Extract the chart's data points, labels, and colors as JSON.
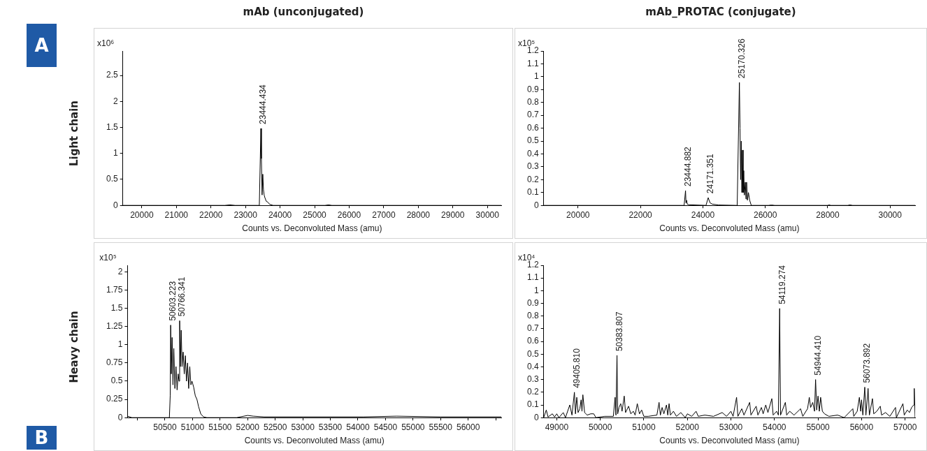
{
  "chart_data": [
    {
      "type": "line",
      "title": "mAb (unconjugated)",
      "ylabel": "Light chain",
      "xlabel": "Counts vs. Deconvoluted Mass (amu)",
      "color": "#000000",
      "x": [
        19450,
        20500,
        22400,
        22550,
        22700,
        23400,
        23444.434,
        23460,
        23480,
        23500,
        23520,
        23540,
        23560,
        23600,
        23650,
        23700,
        23800,
        25300,
        25400,
        25500,
        30400
      ],
      "values": [
        0,
        0,
        0,
        0.01,
        0,
        0,
        1.48,
        0.9,
        0.2,
        0.6,
        0.3,
        0.2,
        0.15,
        0.08,
        0.06,
        0.02,
        0,
        0,
        0.01,
        0,
        0
      ],
      "xlim": [
        19450,
        30400
      ],
      "xticks": [
        20000,
        21000,
        22000,
        23000,
        24000,
        25000,
        26000,
        27000,
        28000,
        29000,
        30000
      ],
      "ylim": [
        0,
        2.97
      ],
      "yticks": [
        0,
        0.5,
        1,
        1.5,
        2,
        2.5
      ],
      "annotations": [
        "x10⁶",
        "A",
        {
          "text": "23444.434",
          "x": 23444.434,
          "y": 1.48
        }
      ]
    },
    {
      "type": "line",
      "title": "mAb_PROTAC (conjugate)",
      "xlabel": "Counts vs. Deconvoluted Mass (amu)",
      "color": "#000000",
      "x": [
        18900,
        22500,
        23400,
        23444.882,
        23460,
        23480,
        23500,
        23550,
        24100,
        24171.351,
        24200,
        24230,
        24300,
        24500,
        25100,
        25170.326,
        25190,
        25210,
        25230,
        25250,
        25270,
        25290,
        25310,
        25330,
        25360,
        25380,
        25400,
        25430,
        25460,
        25500,
        25550,
        26100,
        26200,
        26300,
        28000,
        28050,
        28100,
        28650,
        28700,
        28800,
        30800
      ],
      "values": [
        0,
        0,
        0,
        0.115,
        0.02,
        0.04,
        0.01,
        0.005,
        0,
        0.06,
        0.04,
        0.02,
        0.01,
        0.003,
        0,
        0.955,
        0.6,
        0.2,
        0.5,
        0.1,
        0.43,
        0.1,
        0.27,
        0.08,
        0.18,
        0.05,
        0.18,
        0.04,
        0.1,
        0.04,
        0,
        0,
        0.003,
        0,
        0,
        0.004,
        0,
        0,
        0.004,
        0,
        0
      ],
      "xlim": [
        18900,
        30800
      ],
      "xticks": [
        20000,
        22000,
        24000,
        26000,
        28000,
        30000
      ],
      "ylim": [
        0,
        1.2
      ],
      "yticks": [
        0,
        0.1,
        0.2,
        0.3,
        0.4,
        0.5,
        0.6,
        0.7,
        0.8,
        0.9,
        1,
        1.1,
        1.2
      ],
      "annotations": [
        "x10⁵",
        {
          "text": "23444.882",
          "x": 23444.882,
          "y": 0.115
        },
        {
          "text": "24171.351",
          "x": 24171.351,
          "y": 0.06
        },
        {
          "text": "25170.326",
          "x": 25170.326,
          "y": 0.955
        }
      ]
    },
    {
      "type": "line",
      "ylabel": "Heavy chain",
      "xlabel": "Counts vs. Deconvoluted Mass (amu)",
      "color": "#000000",
      "x": [
        49820,
        49900,
        50580,
        50595,
        50603.223,
        50615,
        50630,
        50645,
        50660,
        50680,
        50700,
        50720,
        50740,
        50755,
        50766.341,
        50780,
        50795,
        50810,
        50830,
        50850,
        50870,
        50890,
        50910,
        50930,
        50950,
        50970,
        50990,
        51020,
        51050,
        51080,
        51110,
        51150,
        51200,
        51260,
        51800,
        52000,
        52100,
        52300,
        53000,
        54100,
        54700,
        55500,
        56600
      ],
      "values": [
        0.02,
        0,
        0,
        0.3,
        1.27,
        0.6,
        1.1,
        0.45,
        0.95,
        0.4,
        0.7,
        0.38,
        0.6,
        0.5,
        1.33,
        0.7,
        1.2,
        0.7,
        0.9,
        0.6,
        0.85,
        0.5,
        0.75,
        0.4,
        0.7,
        0.45,
        0.5,
        0.42,
        0.3,
        0.25,
        0.15,
        0.05,
        0.01,
        0,
        0,
        0.03,
        0.02,
        0.01,
        0.01,
        0.01,
        0.02,
        0.01,
        0.01
      ],
      "xlim": [
        49820,
        56600
      ],
      "xticks": [
        {
          "value": 50000,
          "label": null
        },
        50500,
        51000,
        51500,
        52000,
        52500,
        53000,
        53500,
        54000,
        54500,
        55000,
        55500,
        56000,
        {
          "value": 56500,
          "label": null
        }
      ],
      "ylim": [
        0,
        2.09
      ],
      "yticks": [
        0,
        0.25,
        0.5,
        0.75,
        1,
        1.25,
        1.5,
        1.75,
        2
      ],
      "annotations": [
        "x10⁵",
        "B",
        {
          "text": "50603.223",
          "x": 50603.223,
          "y": 1.27
        },
        {
          "text": "50766.341",
          "x": 50766.341,
          "y": 1.33
        }
      ]
    },
    {
      "type": "line",
      "xlabel": "Counts vs. Deconvoluted Mass (amu)",
      "color": "#000000",
      "x": [
        48700,
        48760,
        48800,
        48900,
        48950,
        49000,
        49050,
        49150,
        49200,
        49300,
        49350,
        49405.81,
        49430,
        49460,
        49490,
        49530,
        49560,
        49580,
        49600,
        49640,
        49700,
        49780,
        49850,
        49900,
        50100,
        50300,
        50340,
        50360,
        50383.807,
        50400,
        50430,
        50470,
        50500,
        50550,
        50580,
        50650,
        50700,
        50760,
        50800,
        50850,
        50900,
        50950,
        51000,
        51100,
        51300,
        51350,
        51380,
        51420,
        51460,
        51520,
        51550,
        51580,
        51610,
        51680,
        51750,
        51850,
        51950,
        52000,
        52100,
        52200,
        52250,
        52400,
        52600,
        52800,
        52900,
        53000,
        53050,
        53130,
        53160,
        53250,
        53300,
        53430,
        53460,
        53580,
        53620,
        53700,
        53740,
        53800,
        53850,
        53940,
        53970,
        54050,
        54090,
        54119.274,
        54140,
        54250,
        54280,
        54350,
        54450,
        54600,
        54650,
        54760,
        54800,
        54830,
        54880,
        54920,
        54944.41,
        54970,
        55000,
        55030,
        55060,
        55100,
        55150,
        55250,
        55450,
        55600,
        55800,
        55820,
        55900,
        55950,
        55980,
        56000,
        56030,
        56073.892,
        56100,
        56150,
        56180,
        56250,
        56280,
        56350,
        56430,
        56460,
        56550,
        56650,
        56780,
        56800,
        56950,
        56980,
        57050,
        57100,
        57150,
        57200,
        57210,
        57230
      ],
      "values": [
        0,
        0.06,
        0.005,
        0.03,
        0.005,
        0.03,
        0,
        0.04,
        0,
        0.1,
        0.02,
        0.2,
        0.03,
        0.16,
        0.04,
        0.07,
        0.14,
        0.05,
        0.18,
        0.04,
        0.02,
        0.03,
        0.03,
        0,
        0.01,
        0.01,
        0.16,
        0.02,
        0.49,
        0.03,
        0.08,
        0.11,
        0.05,
        0.17,
        0.04,
        0.09,
        0.03,
        0.05,
        0.02,
        0.11,
        0.03,
        0.06,
        0.01,
        0.01,
        0.02,
        0.12,
        0.02,
        0.08,
        0.03,
        0.1,
        0.02,
        0.11,
        0.02,
        0.05,
        0.01,
        0.04,
        0,
        0.03,
        0.01,
        0.05,
        0.01,
        0.02,
        0.01,
        0.04,
        0.01,
        0.05,
        0.01,
        0.16,
        0.01,
        0.07,
        0.02,
        0.12,
        0.02,
        0.09,
        0.02,
        0.08,
        0.03,
        0.1,
        0.04,
        0.15,
        0.02,
        0.05,
        0.02,
        0.86,
        0.02,
        0.12,
        0.02,
        0.05,
        0.02,
        0.07,
        0.01,
        0.07,
        0.16,
        0.08,
        0.12,
        0.05,
        0.3,
        0.06,
        0.17,
        0.05,
        0.16,
        0.05,
        0.03,
        0.01,
        0.02,
        0,
        0.07,
        0.01,
        0.05,
        0.16,
        0.05,
        0.14,
        0.02,
        0.24,
        0.02,
        0.23,
        0.02,
        0.15,
        0.03,
        0.05,
        0.09,
        0.02,
        0.04,
        0.01,
        0.08,
        0,
        0.11,
        0.02,
        0.06,
        0.04,
        0.08,
        0.1,
        0.23,
        0
      ],
      "xlim": [
        48700,
        57230
      ],
      "xticks": [
        49000,
        50000,
        51000,
        52000,
        53000,
        54000,
        55000,
        56000,
        57000
      ],
      "ylim": [
        0,
        1.2
      ],
      "yticks": [
        0,
        0.1,
        0.2,
        0.3,
        0.4,
        0.5,
        0.6,
        0.7,
        0.8,
        0.9,
        1,
        1.1,
        1.2
      ],
      "annotations": [
        "x10⁴",
        {
          "text": "49405.810",
          "x": 49405.81,
          "y": 0.2
        },
        {
          "text": "50383.807",
          "x": 50383.807,
          "y": 0.49
        },
        {
          "text": "54119.274",
          "x": 54119.274,
          "y": 0.86
        },
        {
          "text": "54944.410",
          "x": 54944.41,
          "y": 0.3
        },
        {
          "text": "56073.892",
          "x": 56073.892,
          "y": 0.24
        }
      ]
    }
  ]
}
